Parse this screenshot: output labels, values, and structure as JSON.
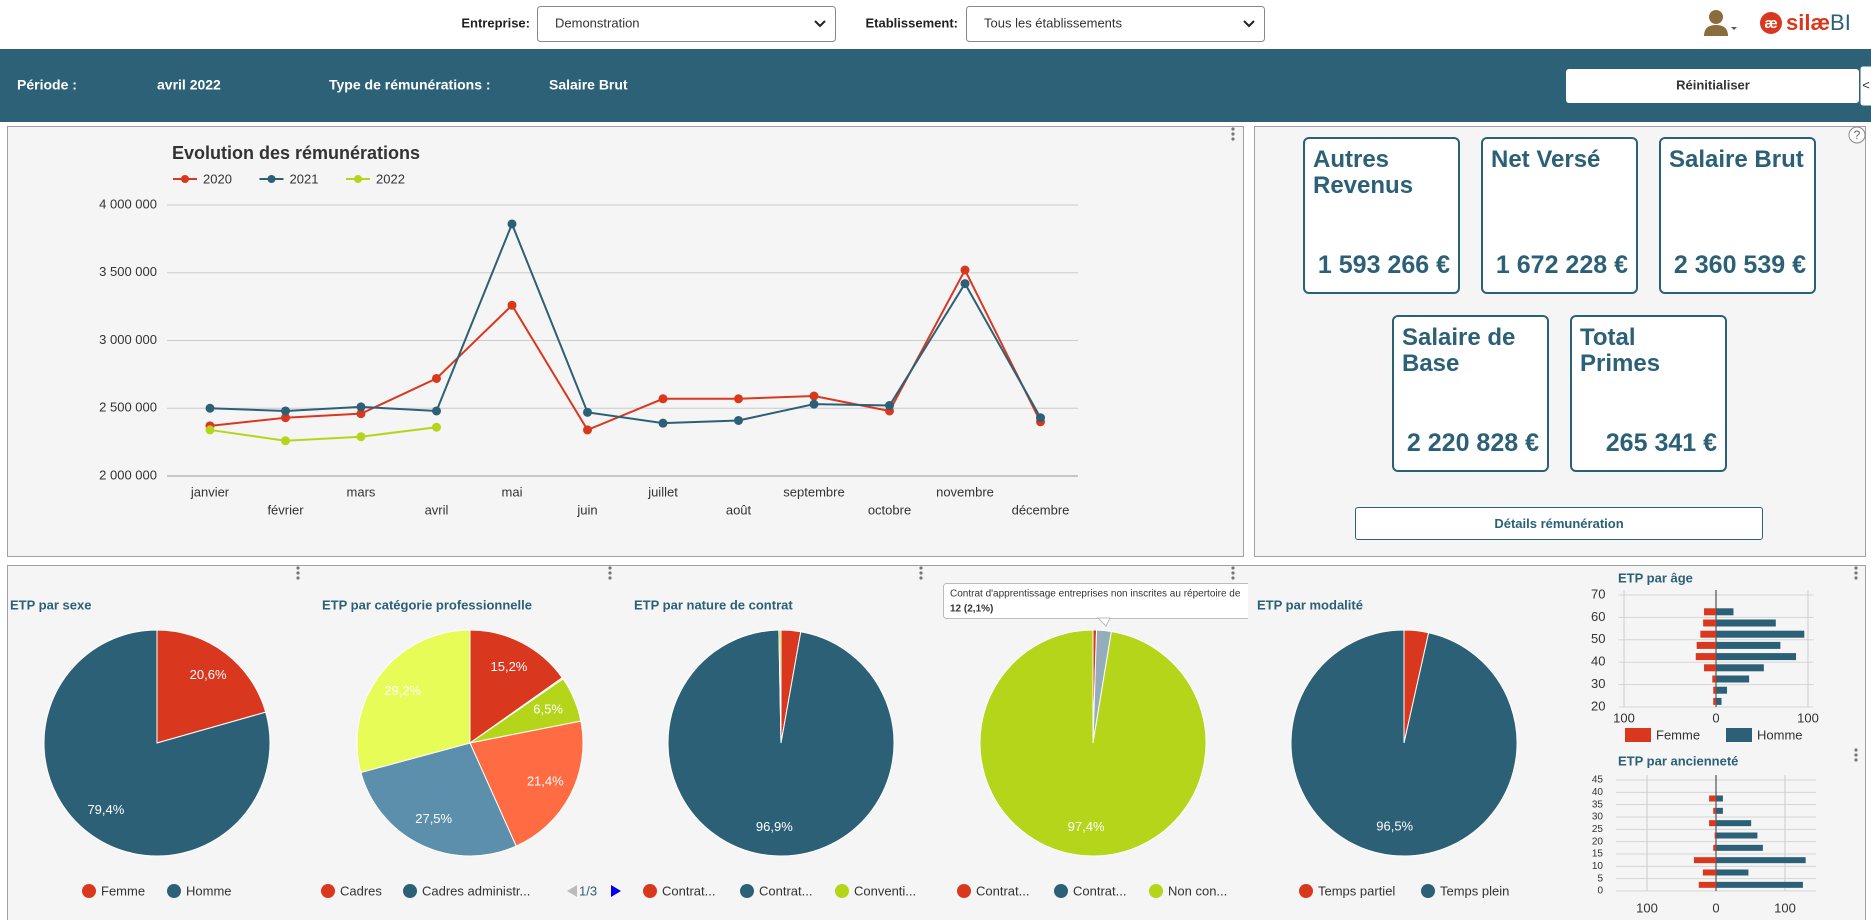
{
  "header": {
    "company_label": "Entreprise:",
    "company": "Demonstration",
    "site_label": "Etablissement:",
    "site": "Tous les établissements",
    "logo_icon": "æ",
    "logo_name": "silæ",
    "logo_suffix": "BI"
  },
  "filters": {
    "period_label": "Période :",
    "period": "avril 2022",
    "type_label": "Type de rémunérations :",
    "type": "Salaire Brut",
    "reset": "Réinitialiser",
    "collapse": "<"
  },
  "line_chart": {
    "type": "line",
    "title": "Evolution des rémunérations",
    "categories": [
      "janvier",
      "février",
      "mars",
      "avril",
      "mai",
      "juin",
      "juillet",
      "août",
      "septembre",
      "octobre",
      "novembre",
      "décembre"
    ],
    "series": [
      {
        "name": "2020",
        "color": "#d9381e",
        "values": [
          2370000,
          2430000,
          2460000,
          2720000,
          3260000,
          2340000,
          2570000,
          2570000,
          2590000,
          2480000,
          3520000,
          2400000
        ]
      },
      {
        "name": "2021",
        "color": "#2c6077",
        "values": [
          2500000,
          2480000,
          2510000,
          2480000,
          3860000,
          2470000,
          2390000,
          2410000,
          2530000,
          2520000,
          3420000,
          2430000
        ]
      },
      {
        "name": "2022",
        "color": "#b5d51a",
        "values": [
          2340000,
          2260000,
          2290000,
          2360000,
          null,
          null,
          null,
          null,
          null,
          null,
          null,
          null
        ]
      }
    ],
    "ylim": [
      2000000,
      4000000
    ],
    "yticks": [
      {
        "value": 2000000,
        "label": "2 000 000"
      },
      {
        "value": 2500000,
        "label": "2 500 000"
      },
      {
        "value": 3000000,
        "label": "3 000 000"
      },
      {
        "value": 3500000,
        "label": "3 500 000"
      },
      {
        "value": 4000000,
        "label": "4 000 000"
      }
    ],
    "grid": true
  },
  "kpis": {
    "help": "?",
    "cards": [
      {
        "title": "Autres Revenus",
        "value": "1 593 266 €"
      },
      {
        "title": "Net Versé",
        "value": "1 672 228 €"
      },
      {
        "title": "Salaire Brut",
        "value": "2 360 539 €"
      },
      {
        "title": "Salaire de Base",
        "value": "2 220 828 €"
      },
      {
        "title": "Total Primes",
        "value": "265 341 €"
      }
    ],
    "details": "Détails rémunération"
  },
  "pies": [
    {
      "type": "pie",
      "title": "ETP par sexe",
      "values": [
        20.6,
        79.4
      ],
      "value_labels": [
        "20,6%",
        "79,4%"
      ],
      "colors": [
        "#d9381e",
        "#2c6077"
      ],
      "legend": [
        {
          "name": "Femme",
          "color": "#d9381e"
        },
        {
          "name": "Homme",
          "color": "#2c6077"
        }
      ]
    },
    {
      "type": "pie",
      "title": "ETP par catégorie professionnelle",
      "values": [
        15.2,
        0.2,
        6.5,
        21.4,
        27.5,
        29.2
      ],
      "value_labels": [
        "15,2%",
        null,
        "6,5%",
        "21,4%",
        "27,5%",
        "29,2%"
      ],
      "colors": [
        "#d9381e",
        "#c8d0d4",
        "#b5d51a",
        "#ff6b42",
        "#5b8fab",
        "#e8fc58"
      ],
      "legend": [
        {
          "name": "Cadres",
          "color": "#d9381e"
        },
        {
          "name": "Cadres administr...",
          "color": "#2c6077"
        }
      ],
      "page": "1/3"
    },
    {
      "type": "pie",
      "title": "ETP par nature de contrat",
      "values": [
        2.8,
        96.9,
        0.3
      ],
      "value_labels": [
        null,
        "96,9%",
        null
      ],
      "colors": [
        "#d9381e",
        "#2c6077",
        "#b5d51a"
      ],
      "legend": [
        {
          "name": "Contrat...",
          "color": "#d9381e"
        },
        {
          "name": "Contrat...",
          "color": "#2c6077"
        },
        {
          "name": "Conventi...",
          "color": "#b5d51a"
        }
      ]
    },
    {
      "type": "pie",
      "values": [
        0.5,
        2.1,
        97.4
      ],
      "value_labels": [
        null,
        null,
        "97,4%"
      ],
      "colors": [
        "#d9381e",
        "#93adbb",
        "#b5d51a"
      ],
      "legend": [
        {
          "name": "Contrat...",
          "color": "#d9381e"
        },
        {
          "name": "Contrat...",
          "color": "#2c6077"
        },
        {
          "name": "Non con...",
          "color": "#b5d51a"
        }
      ],
      "tooltip": {
        "text": "Contrat d'apprentissage entreprises non inscrites au répertoire de",
        "value": "12 (2,1%)"
      }
    },
    {
      "type": "pie",
      "title": "ETP par modalité",
      "values": [
        3.5,
        96.5
      ],
      "value_labels": [
        null,
        "96,5%"
      ],
      "colors": [
        "#d9381e",
        "#2c6077"
      ],
      "legend": [
        {
          "name": "Temps partiel",
          "color": "#d9381e"
        },
        {
          "name": "Temps plein",
          "color": "#2c6077"
        }
      ]
    }
  ],
  "bar_charts": [
    {
      "type": "hbar",
      "title": "ETP par âge",
      "y": [
        62.5,
        57.5,
        52.5,
        47.5,
        42.5,
        37.5,
        32.5,
        27.5,
        22.5
      ],
      "series": [
        {
          "name": "Femme",
          "color": "#d9381e",
          "values": [
            -13,
            -14,
            -17,
            -21,
            -22,
            -13,
            -4,
            -3,
            -3
          ]
        },
        {
          "name": "Homme",
          "color": "#2c6077",
          "values": [
            19,
            65,
            96,
            70,
            87,
            52,
            36,
            12,
            6
          ]
        }
      ],
      "xlim": [
        -106,
        106
      ],
      "xticks": [
        {
          "value": -100,
          "label": "100"
        },
        0,
        100
      ],
      "ylim": [
        20,
        70
      ],
      "yticks": [
        20,
        30,
        40,
        50,
        60,
        70
      ],
      "legend": true
    },
    {
      "type": "hbar",
      "title": "ETP par ancienneté",
      "y": [
        37.5,
        32.5,
        27.5,
        22.5,
        17.5,
        12.5,
        7.5,
        2.5
      ],
      "series": [
        {
          "color": "#d9381e",
          "values": [
            -10,
            -4,
            -10,
            -2,
            -4,
            -32,
            -19,
            -25
          ]
        },
        {
          "color": "#2c6077",
          "values": [
            10,
            10,
            51,
            60,
            68,
            130,
            47,
            126
          ]
        }
      ],
      "xlim": [
        -145,
        145
      ],
      "xticks": [
        {
          "value": -100,
          "label": "100"
        },
        0,
        100
      ],
      "ylim": [
        0,
        45
      ],
      "yticks": [
        0,
        5,
        10,
        15,
        20,
        25,
        30,
        35,
        40,
        45
      ],
      "legend": false
    }
  ]
}
